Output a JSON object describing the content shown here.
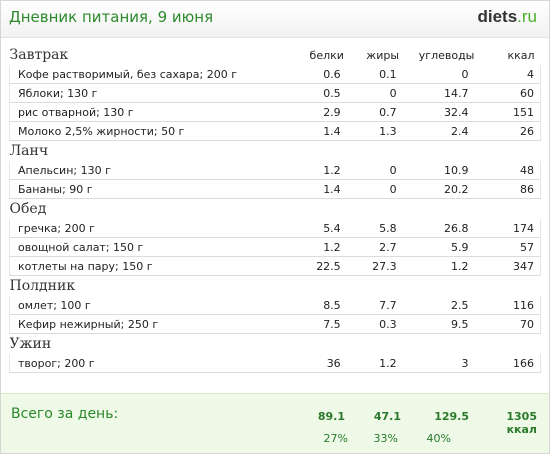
{
  "header": {
    "title": "Дневник питания, 9 июня",
    "logo_main": "diets",
    "logo_suffix": ".ru"
  },
  "columns": {
    "protein": "белки",
    "fat": "жиры",
    "carbs": "углеводы",
    "kcal": "ккал"
  },
  "meals": [
    {
      "name": "Завтрак",
      "items": [
        {
          "name": "Кофе растворимый, без сахара; 200 г",
          "protein": "0.6",
          "fat": "0.1",
          "carbs": "0",
          "kcal": "4"
        },
        {
          "name": "Яблоки; 130 г",
          "protein": "0.5",
          "fat": "0",
          "carbs": "14.7",
          "kcal": "60"
        },
        {
          "name": "рис отварной; 130 г",
          "protein": "2.9",
          "fat": "0.7",
          "carbs": "32.4",
          "kcal": "151"
        },
        {
          "name": "Молоко 2,5% жирности; 50 г",
          "protein": "1.4",
          "fat": "1.3",
          "carbs": "2.4",
          "kcal": "26"
        }
      ]
    },
    {
      "name": "Ланч",
      "items": [
        {
          "name": "Апельсин; 130 г",
          "protein": "1.2",
          "fat": "0",
          "carbs": "10.9",
          "kcal": "48"
        },
        {
          "name": "Бананы; 90 г",
          "protein": "1.4",
          "fat": "0",
          "carbs": "20.2",
          "kcal": "86"
        }
      ]
    },
    {
      "name": "Обед",
      "items": [
        {
          "name": "гречка; 200 г",
          "protein": "5.4",
          "fat": "5.8",
          "carbs": "26.8",
          "kcal": "174"
        },
        {
          "name": "овощной салат; 150 г",
          "protein": "1.2",
          "fat": "2.7",
          "carbs": "5.9",
          "kcal": "57"
        },
        {
          "name": "котлеты на пару; 150 г",
          "protein": "22.5",
          "fat": "27.3",
          "carbs": "1.2",
          "kcal": "347"
        }
      ]
    },
    {
      "name": "Полдник",
      "items": [
        {
          "name": "омлет; 100 г",
          "protein": "8.5",
          "fat": "7.7",
          "carbs": "2.5",
          "kcal": "116"
        },
        {
          "name": "Кефир нежирный; 250 г",
          "protein": "7.5",
          "fat": "0.3",
          "carbs": "9.5",
          "kcal": "70"
        }
      ]
    },
    {
      "name": "Ужин",
      "items": [
        {
          "name": "творог; 200 г",
          "protein": "36",
          "fat": "1.2",
          "carbs": "3",
          "kcal": "166"
        }
      ]
    }
  ],
  "total": {
    "label": "Всего за день:",
    "protein": "89.1",
    "fat": "47.1",
    "carbs": "129.5",
    "kcal": "1305 ккал",
    "protein_pct": "27%",
    "fat_pct": "33%",
    "carbs_pct": "40%"
  },
  "colors": {
    "title": "#2b8a2b",
    "total_bg": "#eef9e8",
    "total_text": "#2b7a2b"
  }
}
